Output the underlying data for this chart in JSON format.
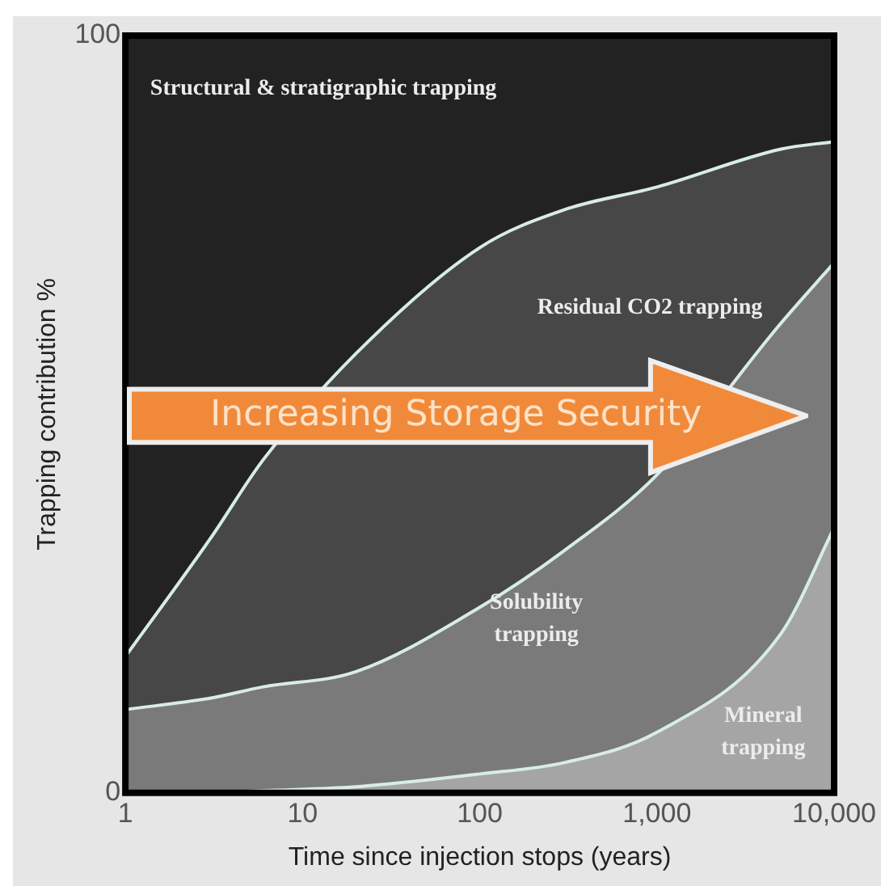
{
  "chart_data": {
    "type": "area",
    "stacked": true,
    "log": "x",
    "xlabel": "Time since injection stops (years)",
    "ylabel": "Trapping contribution %",
    "x": [
      1,
      3,
      6,
      20,
      100,
      300,
      1000,
      5000,
      10000
    ],
    "xlim": [
      1,
      10000
    ],
    "xticks": [
      1,
      10,
      100,
      {
        "value": 1000,
        "label": "1,000"
      },
      {
        "value": 10000,
        "label": "10,000"
      }
    ],
    "ylim": [
      0,
      100
    ],
    "yticks": [
      0,
      100
    ],
    "legend": false,
    "series": [
      {
        "name": "Mineral trapping",
        "color": "#a5a5a5",
        "values": [
          0,
          0,
          0.3,
          0.8,
          2.5,
          4,
          8,
          21,
          35
        ]
      },
      {
        "name": "Solubility trapping",
        "color": "#7a7a7a",
        "values": [
          11,
          12.5,
          13.7,
          15.2,
          22,
          28,
          34,
          41,
          35
        ]
      },
      {
        "name": "Residual CO2 trapping",
        "color": "#474747",
        "values": [
          7,
          21,
          30,
          42,
          47.5,
          45,
          38,
          23,
          16
        ]
      },
      {
        "name": "Structural & stratigraphic trapping",
        "color": "#222222",
        "values": [
          82,
          66.5,
          56,
          42,
          28,
          23,
          20,
          15,
          14
        ]
      }
    ],
    "annotations": [
      "Increasing Storage Security"
    ]
  }
}
